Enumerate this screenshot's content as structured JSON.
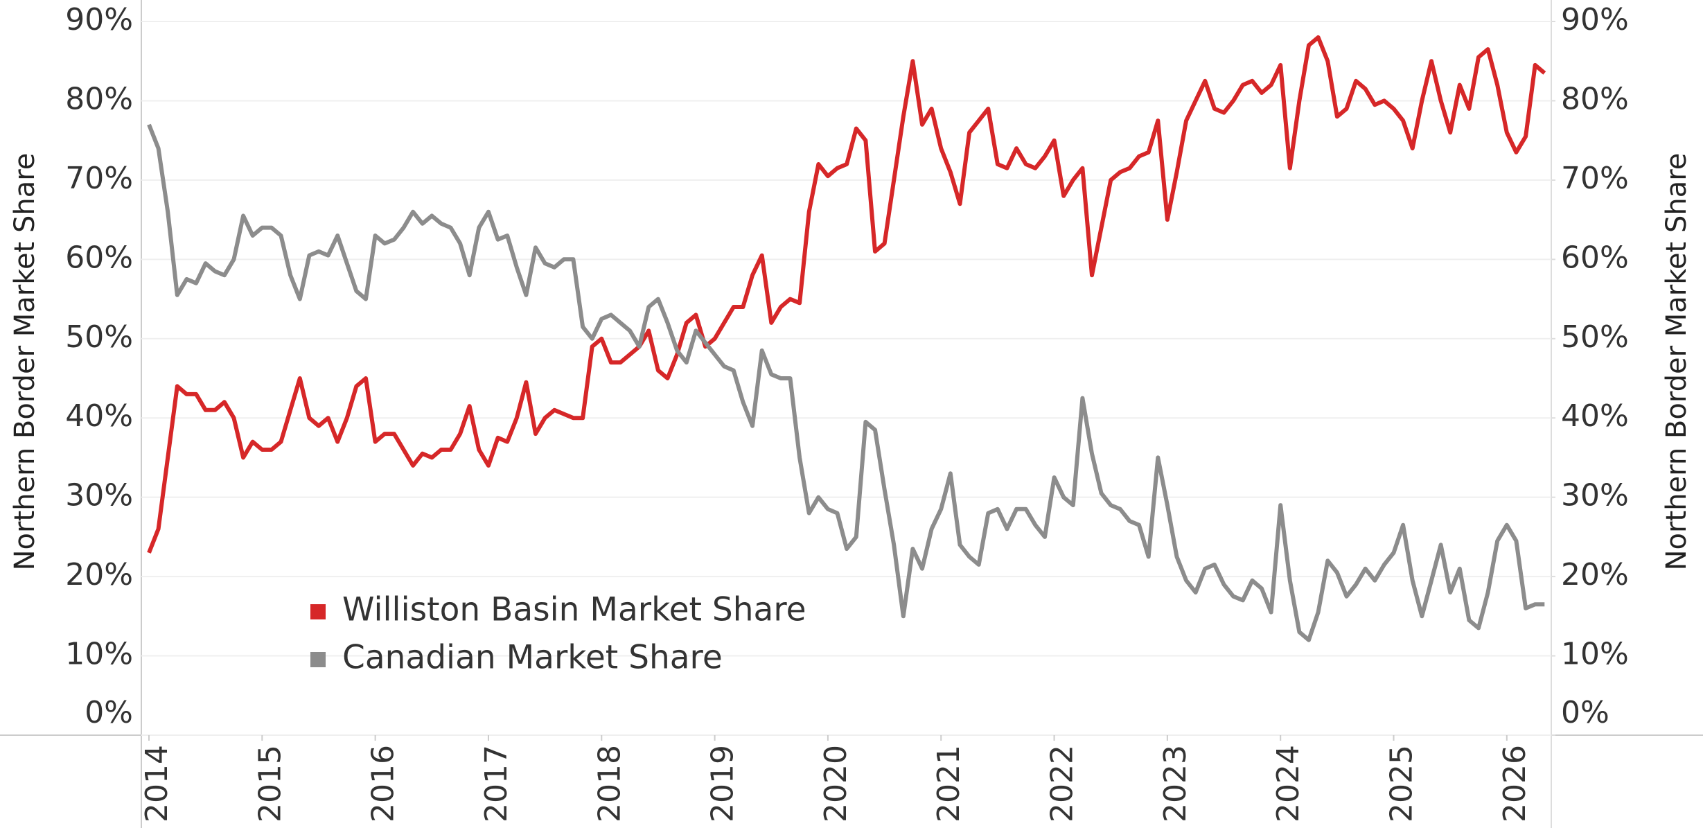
{
  "chart_data": {
    "type": "line",
    "y_label": "Northern Border Market Share",
    "y2_label": "Northern Border Market Share",
    "categories": [
      "2014",
      null,
      null,
      null,
      null,
      null,
      null,
      null,
      null,
      null,
      null,
      null,
      "2015",
      null,
      null,
      null,
      null,
      null,
      null,
      null,
      null,
      null,
      null,
      null,
      "2016",
      null,
      null,
      null,
      null,
      null,
      null,
      null,
      null,
      null,
      null,
      null,
      "2017",
      null,
      null,
      null,
      null,
      null,
      null,
      null,
      null,
      null,
      null,
      null,
      "2018",
      null,
      null,
      null,
      null,
      null,
      null,
      null,
      null,
      null,
      null,
      null,
      "2019",
      null,
      null,
      null,
      null,
      null,
      null,
      null,
      null,
      null,
      null,
      null,
      "2020",
      null,
      null,
      null,
      null,
      null,
      null,
      null,
      null,
      null,
      null,
      null,
      "2021",
      null,
      null,
      null,
      null,
      null,
      null,
      null,
      null,
      null,
      null,
      null,
      "2022",
      null,
      null,
      null,
      null,
      null,
      null,
      null,
      null,
      null,
      null,
      null,
      "2023",
      null,
      null,
      null,
      null,
      null,
      null,
      null,
      null,
      null,
      null,
      null,
      "2024",
      null,
      null,
      null,
      null,
      null,
      null,
      null,
      null,
      null,
      null,
      null,
      "2025",
      null,
      null,
      null,
      null,
      null,
      null,
      null,
      null,
      null,
      null,
      null,
      "2026",
      null,
      null,
      null,
      null
    ],
    "series": [
      {
        "name": "Williston Basin Market Share",
        "color": "#d62728",
        "values": [
          23,
          26,
          35,
          44,
          43,
          43,
          41,
          41,
          42,
          40,
          35,
          37,
          36,
          36,
          37,
          41,
          45,
          40,
          39,
          40,
          37,
          40,
          44,
          45,
          37,
          38,
          38,
          36,
          34,
          35.5,
          35,
          36,
          36,
          38,
          41.5,
          36,
          34,
          37.5,
          37,
          40,
          44.5,
          38,
          40,
          41,
          40.5,
          40,
          40,
          49,
          50,
          47,
          47,
          48,
          49,
          51,
          46,
          45,
          48,
          52,
          53,
          49,
          50,
          52,
          54,
          54,
          58,
          60.5,
          52,
          54,
          55,
          54.5,
          66,
          72,
          70.5,
          71.5,
          72,
          76.5,
          75,
          61,
          62,
          70,
          78,
          85,
          77,
          79,
          74,
          71,
          67,
          76,
          77.5,
          79,
          72,
          71.5,
          74,
          72,
          71.5,
          73,
          75,
          68,
          70,
          71.5,
          58,
          64,
          70,
          71,
          71.5,
          73,
          73.5,
          77.5,
          65,
          71,
          77.5,
          80,
          82.5,
          79,
          78.5,
          80,
          82,
          82.5,
          81,
          82,
          84.5,
          71.5,
          80,
          87,
          88,
          85,
          78,
          79,
          82.5,
          81.5,
          79.5,
          80,
          79,
          77.5,
          74,
          80,
          85,
          80,
          76,
          82,
          79,
          85.5,
          86.5,
          82,
          76,
          73.5,
          75.5,
          84.5,
          83.5
        ]
      },
      {
        "name": "Canadian Market Share",
        "color": "#8c8c8c",
        "axis": "y2",
        "values": [
          77,
          74,
          66,
          55.5,
          57.5,
          57,
          59.5,
          58.5,
          58,
          60,
          65.5,
          63,
          64,
          64,
          63,
          58,
          55,
          60.5,
          61,
          60.5,
          63,
          59.5,
          56,
          55,
          63,
          62,
          62.5,
          64,
          66,
          64.5,
          65.5,
          64.5,
          64,
          62,
          58,
          64,
          66,
          62.5,
          63,
          59,
          55.5,
          61.5,
          59.5,
          59,
          60,
          60,
          51.5,
          50,
          52.5,
          53,
          52,
          51,
          49,
          54,
          55,
          52,
          48.5,
          47,
          51,
          49.5,
          48,
          46.5,
          46,
          42,
          39,
          48.5,
          45.5,
          45,
          45,
          35,
          28,
          30,
          28.5,
          28,
          23.5,
          25,
          39.5,
          38.5,
          31,
          24,
          15,
          23.5,
          21,
          26,
          28.5,
          33,
          24,
          22.5,
          21.5,
          28,
          28.5,
          26,
          28.5,
          28.5,
          26.5,
          25,
          32.5,
          30,
          29,
          42.5,
          35.5,
          30.5,
          29,
          28.5,
          27,
          26.5,
          22.5,
          35,
          29,
          22.5,
          19.5,
          18,
          21,
          21.5,
          19,
          17.5,
          17,
          19.5,
          18.5,
          15.5,
          29,
          19.5,
          13,
          12,
          15.5,
          22,
          20.5,
          17.5,
          19,
          21,
          19.5,
          21.5,
          23,
          26.5,
          19.5,
          15,
          19.5,
          24,
          18,
          21,
          14.5,
          13.5,
          18,
          24.5,
          26.5,
          24.5,
          16,
          16.5,
          16.5
        ]
      }
    ],
    "ylim": [
      0,
      90
    ],
    "yticks": [
      {
        "value": 0,
        "label": "0%"
      },
      {
        "value": 10,
        "label": "10%"
      },
      {
        "value": 20,
        "label": "20%"
      },
      {
        "value": 30,
        "label": "30%"
      },
      {
        "value": 40,
        "label": "40%"
      },
      {
        "value": 50,
        "label": "50%"
      },
      {
        "value": 60,
        "label": "60%"
      },
      {
        "value": 70,
        "label": "70%"
      },
      {
        "value": 80,
        "label": "80%"
      },
      {
        "value": 90,
        "label": "90%"
      }
    ],
    "y2lim": [
      0,
      90
    ],
    "y2ticks": [
      {
        "value": 0,
        "label": "0%"
      },
      {
        "value": 10,
        "label": "10%"
      },
      {
        "value": 20,
        "label": "20%"
      },
      {
        "value": 30,
        "label": "30%"
      },
      {
        "value": 40,
        "label": "40%"
      },
      {
        "value": 50,
        "label": "50%"
      },
      {
        "value": 60,
        "label": "60%"
      },
      {
        "value": 70,
        "label": "70%"
      },
      {
        "value": 80,
        "label": "80%"
      },
      {
        "value": 90,
        "label": "90%"
      }
    ],
    "grid": true,
    "legend": "lower left"
  }
}
